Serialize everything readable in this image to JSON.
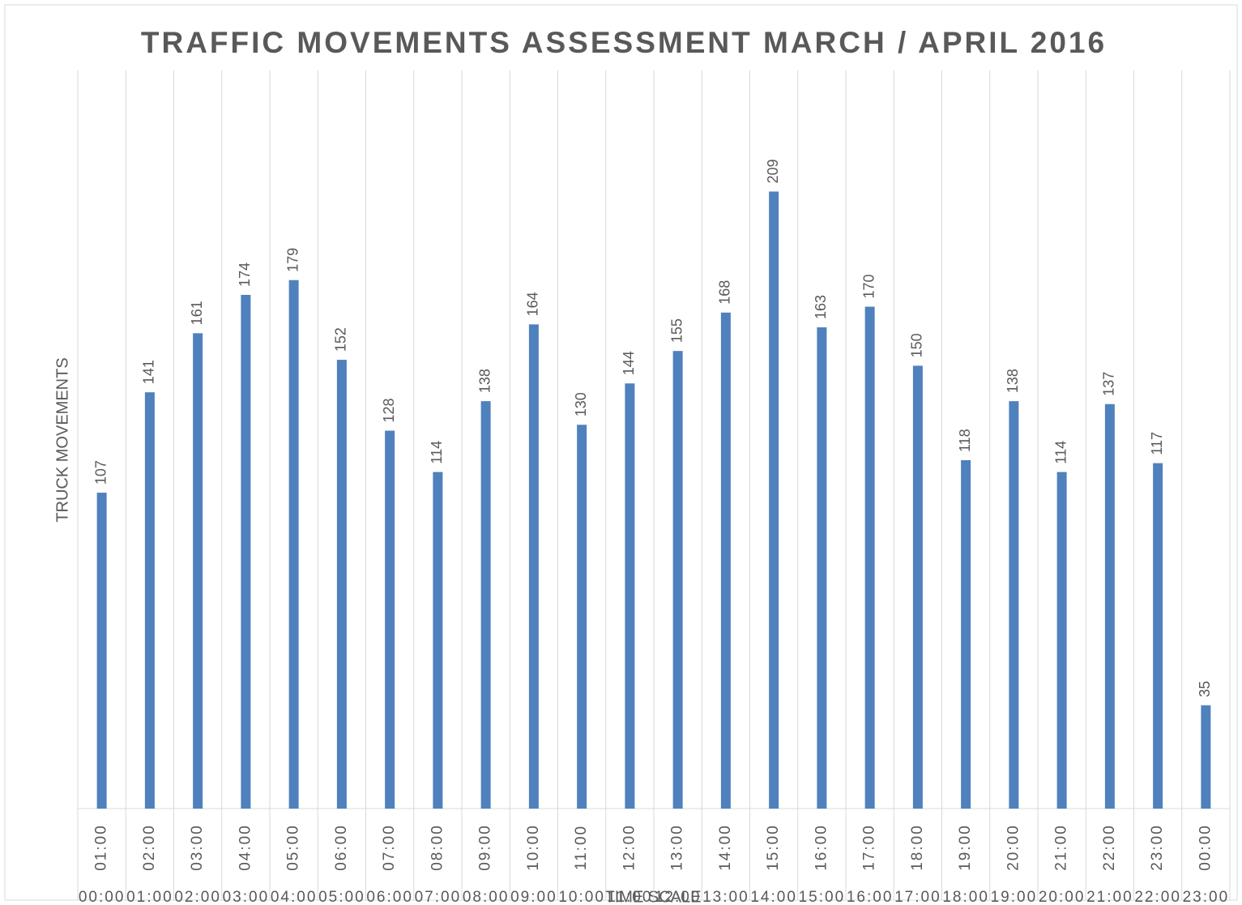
{
  "chart_data": {
    "type": "bar",
    "title": "TRAFFIC MOVEMENTS ASSESSMENT MARCH / APRIL 2016",
    "x_label": "TIME SCALE",
    "y_label": "TRUCK MOVEMENTS",
    "categories": [
      "01:00",
      "02:00",
      "03:00",
      "04:00",
      "05:00",
      "06:00",
      "07:00",
      "08:00",
      "09:00",
      "10:00",
      "11:00",
      "12:00",
      "13:00",
      "14:00",
      "15:00",
      "16:00",
      "17:00",
      "18:00",
      "19:00",
      "20:00",
      "21:00",
      "22:00",
      "23:00",
      "00:00"
    ],
    "group_labels": [
      "00:00",
      "01:00",
      "02:00",
      "03:00",
      "04:00",
      "05:00",
      "06:00",
      "07:00",
      "08:00",
      "09:00",
      "10:00",
      "11:00",
      "12:00",
      "13:00",
      "14:00",
      "15:00",
      "16:00",
      "17:00",
      "18:00",
      "19:00",
      "20:00",
      "21:00",
      "22:00",
      "23:00"
    ],
    "values": [
      107,
      141,
      161,
      174,
      179,
      152,
      128,
      114,
      138,
      164,
      130,
      144,
      155,
      168,
      209,
      163,
      170,
      150,
      118,
      138,
      114,
      137,
      117,
      35
    ],
    "color": "#4f81bd",
    "ylim": [
      0,
      250
    ],
    "grid": true
  }
}
